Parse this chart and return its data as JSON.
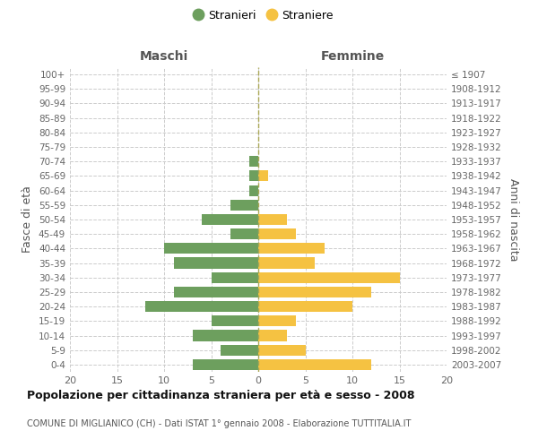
{
  "age_groups": [
    "0-4",
    "5-9",
    "10-14",
    "15-19",
    "20-24",
    "25-29",
    "30-34",
    "35-39",
    "40-44",
    "45-49",
    "50-54",
    "55-59",
    "60-64",
    "65-69",
    "70-74",
    "75-79",
    "80-84",
    "85-89",
    "90-94",
    "95-99",
    "100+"
  ],
  "birth_years": [
    "2003-2007",
    "1998-2002",
    "1993-1997",
    "1988-1992",
    "1983-1987",
    "1978-1982",
    "1973-1977",
    "1968-1972",
    "1963-1967",
    "1958-1962",
    "1953-1957",
    "1948-1952",
    "1943-1947",
    "1938-1942",
    "1933-1937",
    "1928-1932",
    "1923-1927",
    "1918-1922",
    "1913-1917",
    "1908-1912",
    "≤ 1907"
  ],
  "maschi": [
    7,
    4,
    7,
    5,
    12,
    9,
    5,
    9,
    10,
    3,
    6,
    3,
    1,
    1,
    1,
    0,
    0,
    0,
    0,
    0,
    0
  ],
  "femmine": [
    12,
    5,
    3,
    4,
    10,
    12,
    15,
    6,
    7,
    4,
    3,
    0,
    0,
    1,
    0,
    0,
    0,
    0,
    0,
    0,
    0
  ],
  "color_maschi": "#6d9f5e",
  "color_femmine": "#f5c242",
  "title": "Popolazione per cittadinanza straniera per età e sesso - 2008",
  "subtitle": "COMUNE DI MIGLIANICO (CH) - Dati ISTAT 1° gennaio 2008 - Elaborazione TUTTITALIA.IT",
  "header_left": "Maschi",
  "header_right": "Femmine",
  "ylabel_left": "Fasce di età",
  "ylabel_right": "Anni di nascita",
  "legend_maschi": "Stranieri",
  "legend_femmine": "Straniere",
  "xlim": 20,
  "background_color": "#ffffff",
  "grid_color": "#cccccc"
}
